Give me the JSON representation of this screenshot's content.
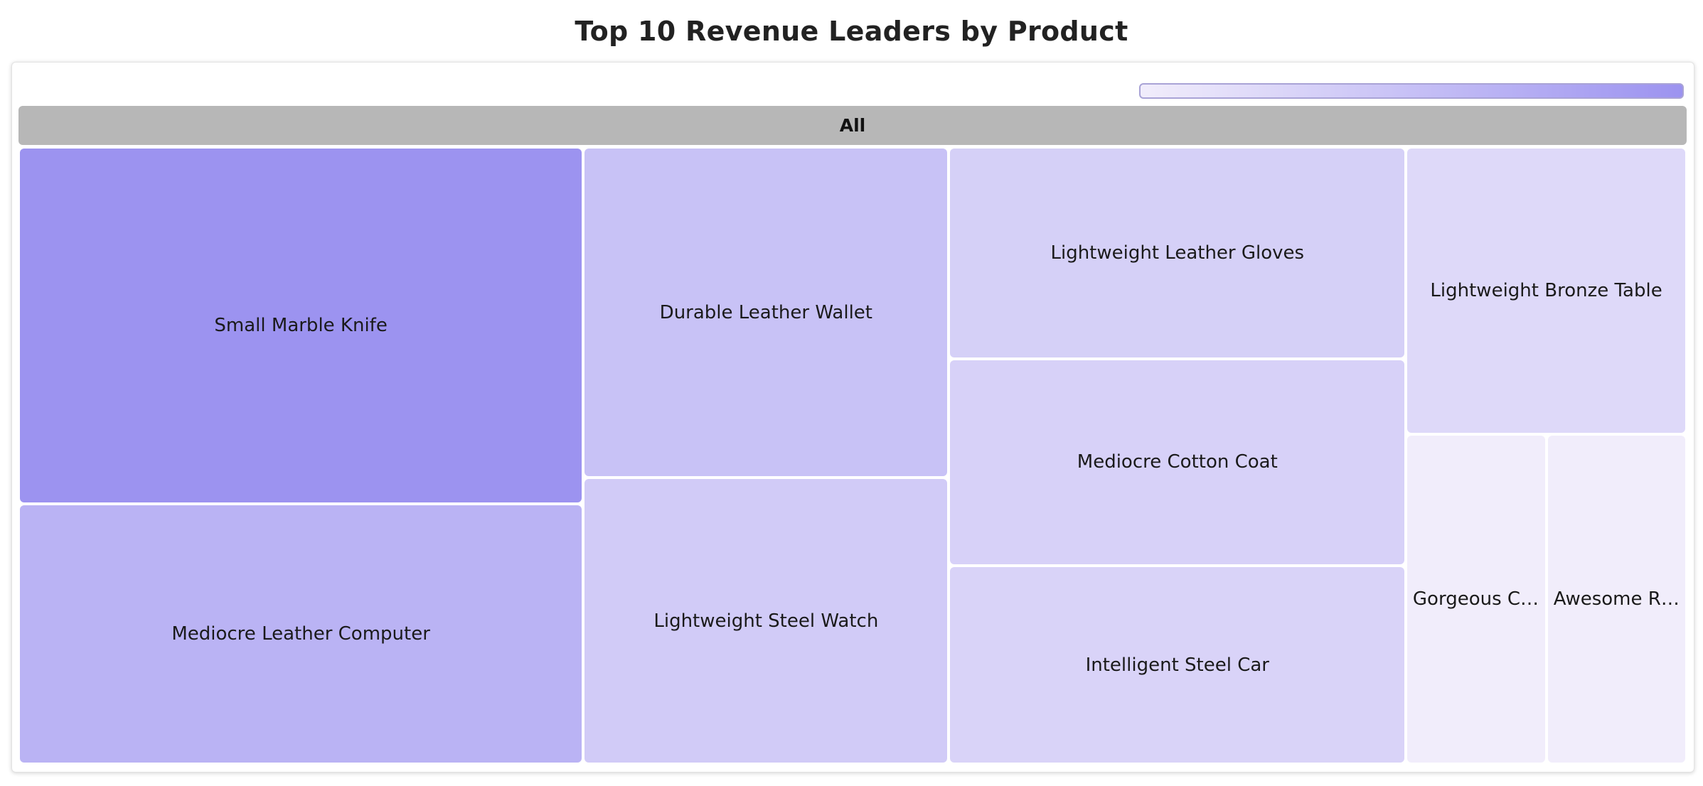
{
  "chart_data": {
    "type": "treemap",
    "title": "Top 10 Revenue Leaders by Product",
    "root_label": "All",
    "colorscale": [
      "#f1edfb",
      "#9c93f0"
    ],
    "items": [
      {
        "label": "Small Marble Knife",
        "value": 100
      },
      {
        "label": "Mediocre Leather Computer",
        "value": 73
      },
      {
        "label": "Durable Leather Wallet",
        "value": 60
      },
      {
        "label": "Lightweight Steel Watch",
        "value": 52
      },
      {
        "label": "Lightweight Leather Gloves",
        "value": 48
      },
      {
        "label": "Mediocre Cotton Coat",
        "value": 47
      },
      {
        "label": "Intelligent Steel Car",
        "value": 45
      },
      {
        "label": "Lightweight Bronze Table",
        "value": 40
      },
      {
        "label": "Gorgeous Co…",
        "value": 23
      },
      {
        "label": "Awesome R…",
        "value": 23
      }
    ]
  }
}
